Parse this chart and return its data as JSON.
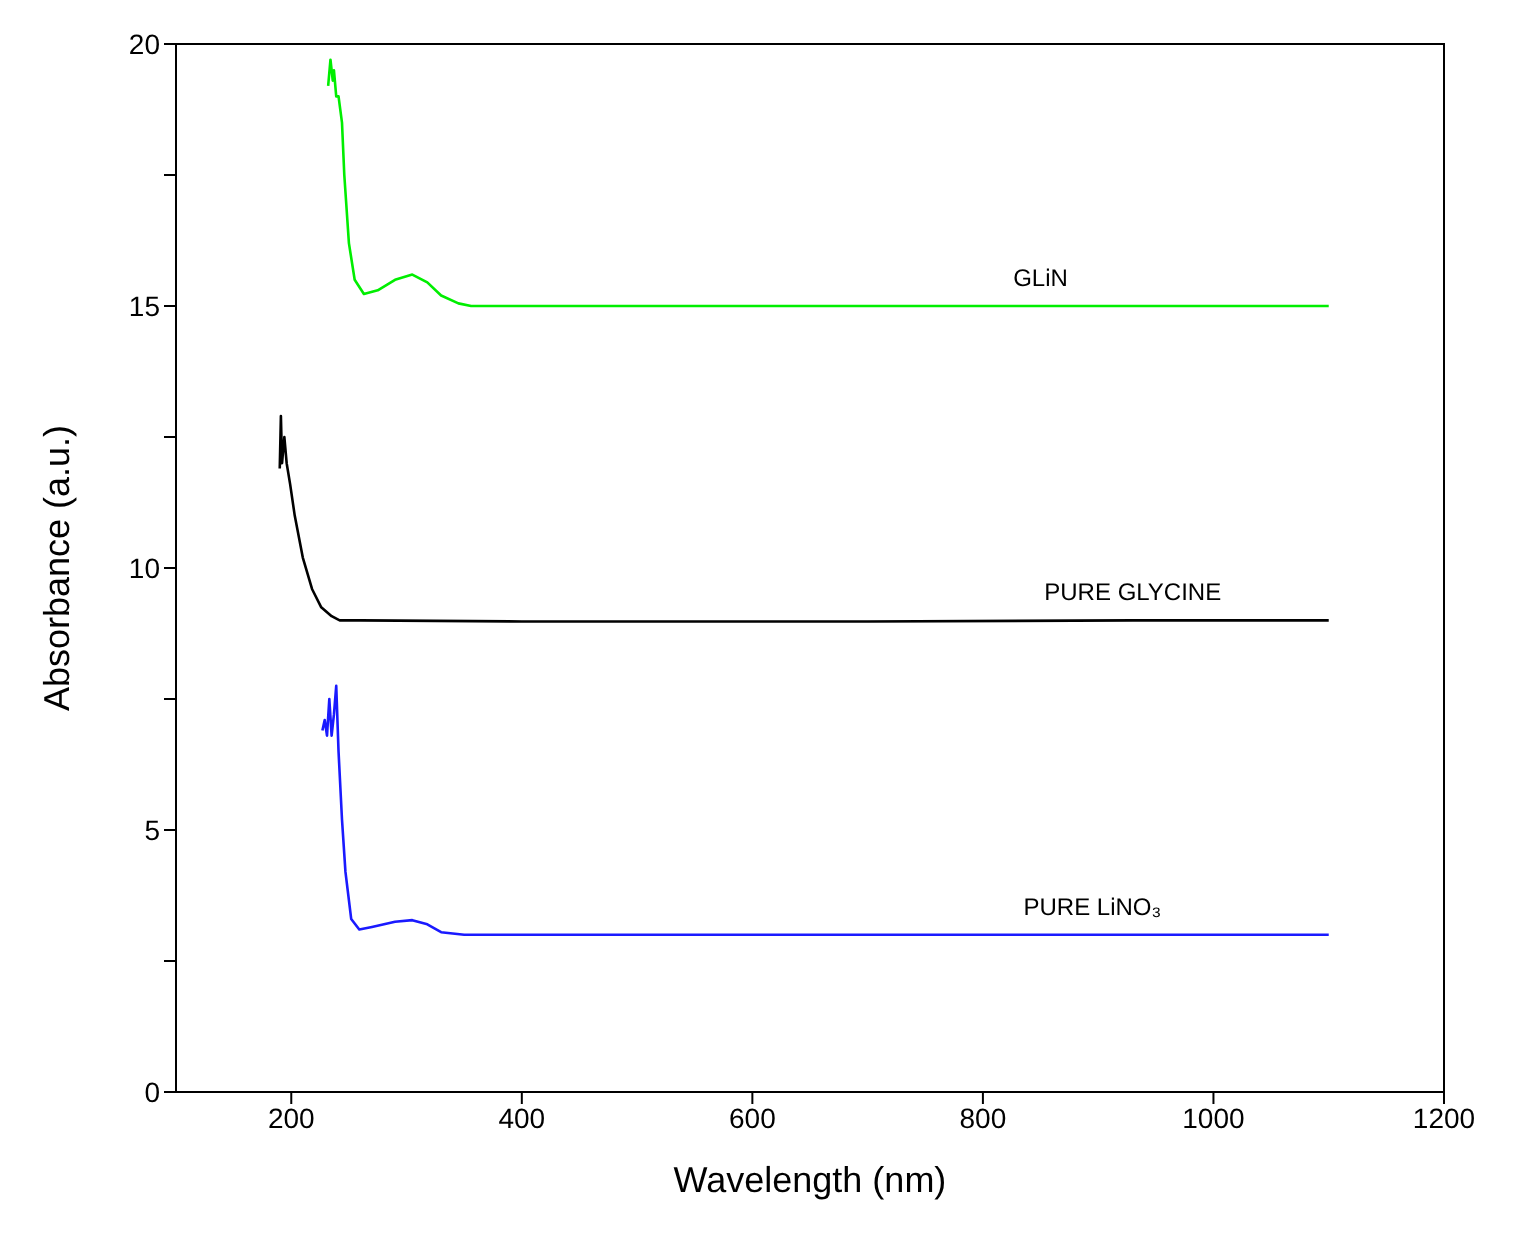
{
  "chart_data": {
    "type": "line",
    "xlabel": "Wavelength (nm)",
    "ylabel": "Absorbance (a.u.)",
    "xlim": [
      100,
      1200
    ],
    "xticks": [
      200,
      400,
      600,
      800,
      1000,
      1200
    ],
    "ylim": [
      0,
      20
    ],
    "yticks": [
      0,
      {
        "value": 2.5,
        "label": null
      },
      5,
      {
        "value": 7.5,
        "label": null
      },
      10,
      {
        "value": 12.5,
        "label": null
      },
      15,
      {
        "value": 17.5,
        "label": null
      },
      20
    ],
    "grid": false,
    "legend": false,
    "marker": "none",
    "line_style": "solid",
    "series": [
      {
        "name": "GLiN",
        "color": "#00ee00",
        "x": [
          232,
          234,
          236,
          237,
          239,
          241,
          244,
          246,
          250,
          255,
          263,
          275,
          290,
          305,
          318,
          330,
          345,
          356,
          500,
          700,
          850,
          1100
        ],
        "values": [
          19.2,
          19.7,
          19.3,
          19.5,
          19.0,
          19.0,
          18.5,
          17.5,
          16.2,
          15.5,
          15.23,
          15.3,
          15.5,
          15.6,
          15.45,
          15.2,
          15.05,
          15.0,
          15.0,
          15.0,
          15.0,
          15.0
        ]
      },
      {
        "name": "PURE GLYCINE",
        "color": "#000000",
        "x": [
          190,
          191,
          192,
          194,
          196,
          199,
          203,
          210,
          218,
          226,
          235,
          242,
          260,
          400,
          700,
          930,
          1100
        ],
        "values": [
          11.9,
          12.9,
          12.0,
          12.5,
          12.0,
          11.6,
          11.0,
          10.2,
          9.6,
          9.25,
          9.08,
          9.0,
          9.0,
          8.98,
          8.98,
          9.0,
          9.0
        ]
      },
      {
        "name": "PURE LiNO₃",
        "color": "#1a1aff",
        "x": [
          227,
          229,
          231,
          233,
          235,
          237,
          239,
          241,
          244,
          247,
          252,
          259,
          270,
          290,
          305,
          318,
          330,
          350,
          500,
          700,
          895,
          1100
        ],
        "values": [
          6.9,
          7.1,
          6.8,
          7.5,
          6.8,
          7.2,
          7.75,
          6.5,
          5.2,
          4.2,
          3.3,
          3.1,
          3.15,
          3.25,
          3.28,
          3.2,
          3.05,
          3.0,
          3.0,
          3.0,
          3.0,
          3.0
        ]
      }
    ]
  }
}
